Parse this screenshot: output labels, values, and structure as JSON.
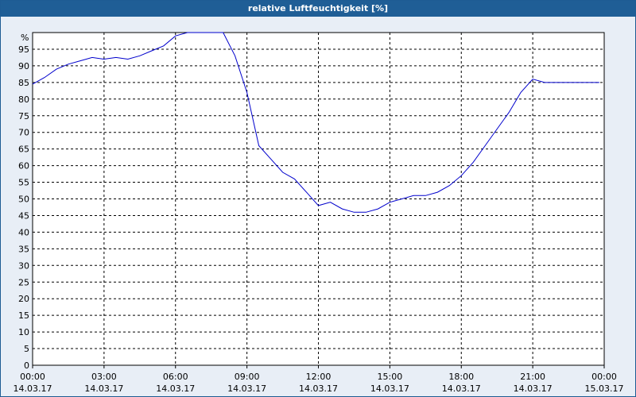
{
  "window": {
    "title": "relative Luftfeuchtigkeit [%]"
  },
  "colors": {
    "title_bar": "#1f5e96",
    "plot_bg": "#ffffff",
    "line": "#0000cc",
    "grid": "#000000"
  },
  "chart_data": {
    "type": "line",
    "title": "relative Luftfeuchtigkeit [%]",
    "ylabel": "%",
    "xlabel": "",
    "ylim": [
      0,
      100
    ],
    "xlim_hours": [
      0,
      24
    ],
    "grid": true,
    "yticks": [
      0,
      5,
      10,
      15,
      20,
      25,
      30,
      35,
      40,
      45,
      50,
      55,
      60,
      65,
      70,
      75,
      80,
      85,
      90,
      95
    ],
    "xticks": [
      {
        "time": "00:00",
        "date": "14.03.17"
      },
      {
        "time": "03:00",
        "date": "14.03.17"
      },
      {
        "time": "06:00",
        "date": "14.03.17"
      },
      {
        "time": "09:00",
        "date": "14.03.17"
      },
      {
        "time": "12:00",
        "date": "14.03.17"
      },
      {
        "time": "15:00",
        "date": "14.03.17"
      },
      {
        "time": "18:00",
        "date": "14.03.17"
      },
      {
        "time": "21:00",
        "date": "14.03.17"
      },
      {
        "time": "00:00",
        "date": "15.03.17"
      }
    ],
    "series": [
      {
        "x": [
          0,
          0.5,
          1,
          1.5,
          2,
          2.5,
          3,
          3.5,
          4,
          4.5,
          5,
          5.5,
          6,
          6.5,
          7,
          7.5,
          8,
          8.5,
          9,
          9.5,
          10,
          10.5,
          11,
          11.5,
          12,
          12.5,
          13,
          13.5,
          14,
          14.5,
          15,
          15.5,
          16,
          16.5,
          17,
          17.5,
          18,
          18.5,
          19,
          19.5,
          20,
          20.5,
          21,
          21.5,
          22,
          22.5,
          23,
          23.5,
          23.8
        ],
        "y": [
          84.5,
          86.5,
          89,
          90.5,
          91.5,
          92.5,
          92,
          92.5,
          92,
          93,
          94.5,
          96,
          99,
          100,
          100,
          100,
          100,
          93,
          82,
          66,
          62,
          58,
          56,
          52,
          48,
          49,
          47,
          46,
          46,
          47,
          49,
          50,
          51,
          51,
          52,
          54,
          57,
          61,
          66,
          71,
          76,
          82,
          86,
          85,
          85,
          85,
          85,
          85,
          85
        ]
      }
    ]
  }
}
